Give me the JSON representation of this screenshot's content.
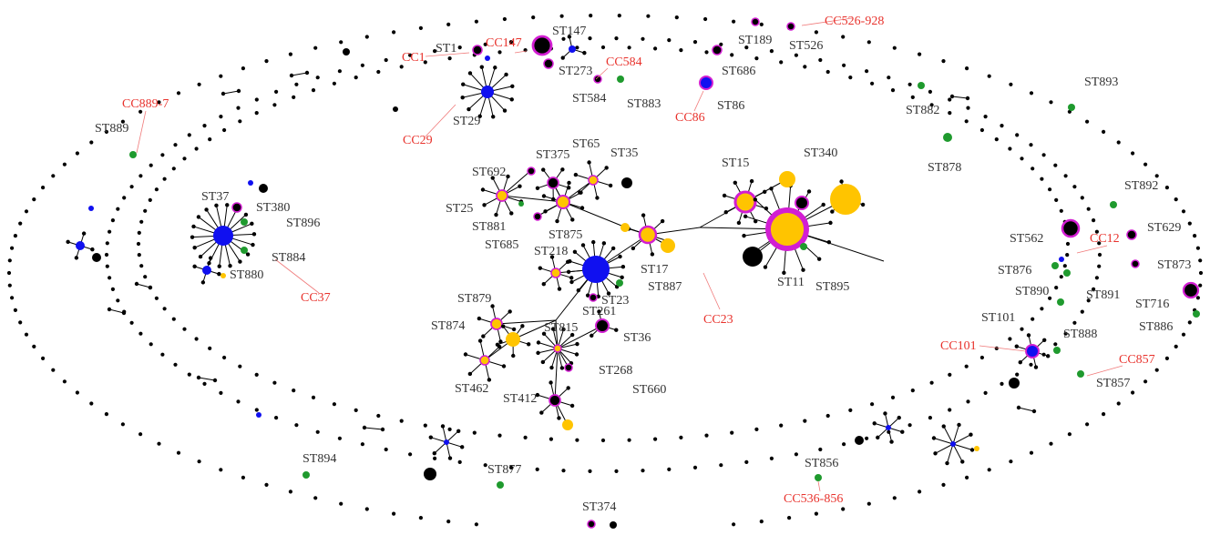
{
  "colors": {
    "blue": "#1010f0",
    "yellow": "#ffc400",
    "black": "#000000",
    "green": "#1f9a2e",
    "magenta_ring": "#d21ed2",
    "cc_label": "#e8322c",
    "st_label": "#333333",
    "leader_line": "#f07a7a"
  },
  "st_labels": [
    "ST147",
    "ST1",
    "ST273",
    "ST189",
    "ST526",
    "ST686",
    "ST584",
    "ST883",
    "ST86",
    "ST29",
    "ST893",
    "ST882",
    "ST878",
    "ST889",
    "ST37",
    "ST380",
    "ST896",
    "ST884",
    "ST880",
    "ST692",
    "ST375",
    "ST65",
    "ST35",
    "ST25",
    "ST881",
    "ST685",
    "ST875",
    "ST15",
    "ST340",
    "ST218",
    "ST17",
    "ST887",
    "ST23",
    "ST11",
    "ST895",
    "ST879",
    "ST261",
    "ST874",
    "ST815",
    "ST36",
    "ST268",
    "ST660",
    "ST462",
    "ST412",
    "ST892",
    "ST629",
    "ST562",
    "ST876",
    "ST873",
    "ST890",
    "ST891",
    "ST716",
    "ST101",
    "ST886",
    "ST888",
    "ST857",
    "ST894",
    "ST877",
    "ST856",
    "ST374"
  ],
  "cc_labels": [
    "CC526-928",
    "CC147",
    "CC1",
    "CC584",
    "CC29",
    "CC86",
    "CC889-7",
    "CC37",
    "CC23",
    "CC12",
    "CC101",
    "CC857",
    "CC536-856"
  ]
}
